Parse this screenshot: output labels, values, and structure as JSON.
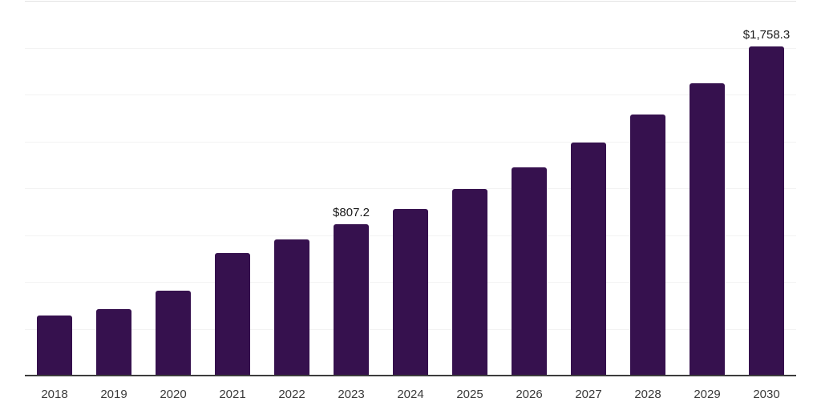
{
  "chart_data": {
    "type": "bar",
    "title": "",
    "xlabel": "",
    "ylabel": "",
    "categories": [
      "2018",
      "2019",
      "2020",
      "2021",
      "2022",
      "2023",
      "2024",
      "2025",
      "2026",
      "2027",
      "2028",
      "2029",
      "2030"
    ],
    "values": [
      321,
      356,
      453,
      656,
      727,
      807.2,
      891,
      998,
      1112,
      1242,
      1392,
      1561,
      1758.3
    ],
    "labeled_points": [
      {
        "category": "2023",
        "label": "$807.2"
      },
      {
        "category": "2030",
        "label": "$1,758.3"
      }
    ],
    "ylim": [
      0,
      2000
    ],
    "gridline_step": 250,
    "grid": true,
    "legend": false,
    "y_axis_tick_labels_visible": false
  },
  "colors": {
    "background": "#ffffff",
    "bar": "#36114e",
    "axis_line": "#3d3d3d",
    "gridline": "#f3f3f3",
    "top_gridline": "#e2e2e2",
    "data_label": "#1a1a1a",
    "tick_label": "#3a3a3a"
  }
}
